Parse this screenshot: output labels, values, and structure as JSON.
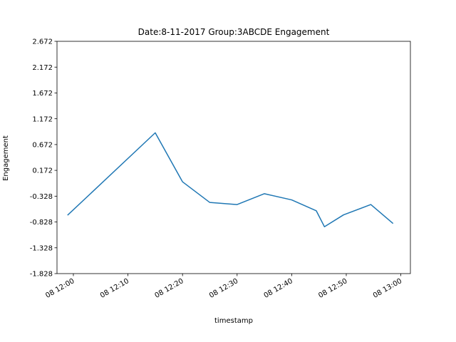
{
  "chart_data": {
    "type": "line",
    "title": "Date:8-11-2017 Group:3ABCDE Engagement",
    "xlabel": "timestamp",
    "ylabel": "Engagement",
    "ylim": [
      -1.828,
      2.672
    ],
    "xlim": [
      "2017-08-11 11:57:00",
      "2017-08-11 13:01:45"
    ],
    "yticks": [
      "-1.828",
      "-1.328",
      "-0.828",
      "-0.328",
      "0.172",
      "0.672",
      "1.172",
      "1.672",
      "2.172",
      "2.672"
    ],
    "xticks": [
      {
        "t": "2017-08-11 12:00:00",
        "label": "08 12:00"
      },
      {
        "t": "2017-08-11 12:10:00",
        "label": "08 12:10"
      },
      {
        "t": "2017-08-11 12:20:00",
        "label": "08 12:20"
      },
      {
        "t": "2017-08-11 12:30:00",
        "label": "08 12:30"
      },
      {
        "t": "2017-08-11 12:40:00",
        "label": "08 12:40"
      },
      {
        "t": "2017-08-11 12:50:00",
        "label": "08 12:50"
      },
      {
        "t": "2017-08-11 13:00:00",
        "label": "08 13:00"
      }
    ],
    "grid": false,
    "series": [
      {
        "color": "#1f77b4",
        "x": [
          "2017-08-11 11:59:00",
          "2017-08-11 12:15:00",
          "2017-08-11 12:20:00",
          "2017-08-11 12:25:00",
          "2017-08-11 12:30:00",
          "2017-08-11 12:35:00",
          "2017-08-11 12:40:00",
          "2017-08-11 12:44:30",
          "2017-08-11 12:46:00",
          "2017-08-11 12:49:30",
          "2017-08-11 12:54:30",
          "2017-08-11 12:58:30"
        ],
        "y": [
          -0.69,
          0.9,
          -0.05,
          -0.45,
          -0.49,
          -0.28,
          -0.4,
          -0.61,
          -0.92,
          -0.69,
          -0.49,
          -0.85
        ]
      }
    ]
  }
}
